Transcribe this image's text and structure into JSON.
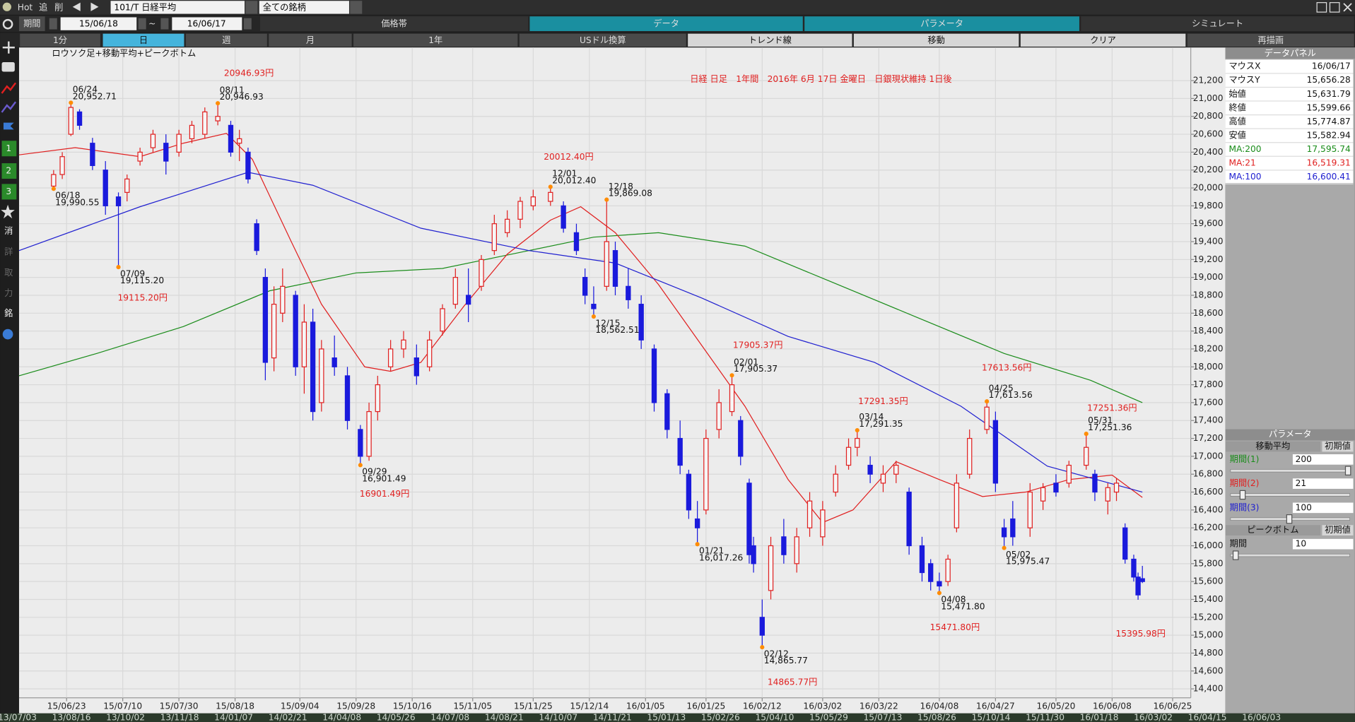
{
  "toolbar": {
    "hot": "Hot",
    "add": "追",
    "del": "削",
    "symbol": "101/T 日経平均",
    "universe": "全ての銘柄"
  },
  "period": {
    "label": "期間",
    "from": "15/06/18",
    "sep": "~",
    "to": "16/06/17"
  },
  "tabs": [
    "価格帯",
    "データ",
    "パラメータ",
    "シミュレート"
  ],
  "buttons": [
    "1分",
    "日",
    "週",
    "月",
    "1年",
    "USドル換算",
    "トレンド線",
    "移動",
    "クリア",
    "再描画"
  ],
  "sidebar": [
    "1",
    "2",
    "3",
    "消",
    "詳",
    "取",
    "力",
    "銘"
  ],
  "chart_data": {
    "type": "candlestick",
    "title": "日経 日足　1年間　2016年 6月 17日 金曜日　日銀現状維持 1日後",
    "subtitle": "ロウソク足+移動平均+ピークボトム",
    "up_color": "#e02020",
    "down_color": "#1a1adc",
    "grid": true,
    "ylim": [
      14300,
      21570
    ],
    "yticks": [
      {
        "value": 14400,
        "label": "14,400"
      },
      {
        "value": 14600,
        "label": "14,600"
      },
      {
        "value": 14800,
        "label": "14,800"
      },
      {
        "value": 15000,
        "label": "15,000"
      },
      {
        "value": 15200,
        "label": "15,200"
      },
      {
        "value": 15400,
        "label": "15,400"
      },
      {
        "value": 15600,
        "label": "15,600"
      },
      {
        "value": 15800,
        "label": "15,800"
      },
      {
        "value": 16000,
        "label": "16,000"
      },
      {
        "value": 16200,
        "label": "16,200"
      },
      {
        "value": 16400,
        "label": "16,400"
      },
      {
        "value": 16600,
        "label": "16,600"
      },
      {
        "value": 16800,
        "label": "16,800"
      },
      {
        "value": 17000,
        "label": "17,000"
      },
      {
        "value": 17200,
        "label": "17,200"
      },
      {
        "value": 17400,
        "label": "17,400"
      },
      {
        "value": 17600,
        "label": "17,600"
      },
      {
        "value": 17800,
        "label": "17,800"
      },
      {
        "value": 18000,
        "label": "18,000"
      },
      {
        "value": 18200,
        "label": "18,200"
      },
      {
        "value": 18400,
        "label": "18,400"
      },
      {
        "value": 18600,
        "label": "18,600"
      },
      {
        "value": 18800,
        "label": "18,800"
      },
      {
        "value": 19000,
        "label": "19,000"
      },
      {
        "value": 19200,
        "label": "19,200"
      },
      {
        "value": 19400,
        "label": "19,400"
      },
      {
        "value": 19600,
        "label": "19,600"
      },
      {
        "value": 19800,
        "label": "19,800"
      },
      {
        "value": 20000,
        "label": "20,000"
      },
      {
        "value": 20200,
        "label": "20,200"
      },
      {
        "value": 20400,
        "label": "20,400"
      },
      {
        "value": 20600,
        "label": "20,600"
      },
      {
        "value": 20800,
        "label": "20,800"
      },
      {
        "value": 21000,
        "label": "21,000"
      },
      {
        "value": 21200,
        "label": "21,200"
      }
    ],
    "xlim": [
      -8,
      263
    ],
    "xticks": [
      {
        "value": 3,
        "label": "15/06/23"
      },
      {
        "value": 16,
        "label": "15/07/10"
      },
      {
        "value": 29,
        "label": "15/07/30"
      },
      {
        "value": 42,
        "label": "15/08/18"
      },
      {
        "value": 57,
        "label": "15/09/04"
      },
      {
        "value": 70,
        "label": "15/09/28"
      },
      {
        "value": 83,
        "label": "15/10/16"
      },
      {
        "value": 97,
        "label": "15/11/05"
      },
      {
        "value": 111,
        "label": "15/11/25"
      },
      {
        "value": 124,
        "label": "15/12/14"
      },
      {
        "value": 137,
        "label": "16/01/05"
      },
      {
        "value": 151,
        "label": "16/01/25"
      },
      {
        "value": 164,
        "label": "16/02/12"
      },
      {
        "value": 178,
        "label": "16/03/02"
      },
      {
        "value": 191,
        "label": "16/03/22"
      },
      {
        "value": 205,
        "label": "16/04/08"
      },
      {
        "value": 218,
        "label": "16/04/27"
      },
      {
        "value": 232,
        "label": "16/05/20"
      },
      {
        "value": 245,
        "label": "16/06/08"
      },
      {
        "value": 259,
        "label": "16/06/25"
      }
    ],
    "candles": {
      "x": [
        0,
        2,
        4,
        6,
        9,
        12,
        15,
        17,
        20,
        23,
        26,
        29,
        32,
        35,
        38,
        41,
        43,
        45,
        47,
        49,
        51,
        53,
        56,
        58,
        60,
        62,
        65,
        68,
        71,
        73,
        75,
        78,
        81,
        84,
        87,
        90,
        93,
        96,
        99,
        102,
        105,
        108,
        111,
        115,
        118,
        121,
        123,
        125,
        128,
        130,
        133,
        136,
        139,
        142,
        145,
        147,
        149,
        151,
        154,
        157,
        159,
        161,
        162,
        164,
        166,
        169,
        172,
        175,
        178,
        181,
        184,
        186,
        189,
        192,
        195,
        198,
        201,
        203,
        205,
        207,
        209,
        212,
        216,
        218,
        220,
        222,
        226,
        229,
        232,
        235,
        239,
        241,
        244,
        246,
        248,
        250,
        251,
        252
      ],
      "open": [
        20020,
        20150,
        20600,
        20850,
        20500,
        20200,
        19900,
        19950,
        20300,
        20450,
        20500,
        20400,
        20550,
        20600,
        20750,
        20700,
        20500,
        20400,
        19600,
        19000,
        18100,
        18600,
        18800,
        18000,
        18500,
        17600,
        18100,
        17900,
        17300,
        17000,
        17500,
        18000,
        18200,
        18100,
        18000,
        18400,
        18700,
        18800,
        18900,
        19300,
        19500,
        19650,
        19800,
        19850,
        19800,
        19500,
        19000,
        18700,
        18900,
        19300,
        18900,
        18700,
        18200,
        17700,
        17200,
        16800,
        16300,
        16400,
        17300,
        17500,
        17400,
        16700,
        16000,
        15200,
        15500,
        16100,
        15800,
        16200,
        16100,
        16600,
        16900,
        17100,
        16900,
        16700,
        16800,
        16600,
        16000,
        15800,
        15600,
        15600,
        16200,
        16800,
        17300,
        17400,
        16200,
        16300,
        16200,
        16500,
        16700,
        16700,
        16900,
        16800,
        16500,
        16600,
        16200,
        15850,
        15650,
        15631.79
      ],
      "high": [
        20200,
        20400,
        20952.71,
        20880,
        20560,
        20300,
        19950,
        20150,
        20450,
        20650,
        20600,
        20650,
        20750,
        20900,
        20946.93,
        20750,
        20650,
        20450,
        19650,
        19100,
        18900,
        19100,
        18850,
        18700,
        18650,
        18300,
        18350,
        18000,
        17350,
        17600,
        17900,
        18300,
        18400,
        18250,
        18400,
        18700,
        19100,
        19100,
        19250,
        19700,
        19750,
        19900,
        19980,
        20012.4,
        19850,
        19600,
        19100,
        18900,
        19869.08,
        19400,
        19100,
        18800,
        18250,
        17750,
        17400,
        16850,
        16500,
        17300,
        17750,
        17905.37,
        17450,
        16750,
        16100,
        15400,
        16100,
        16300,
        16200,
        16600,
        16500,
        16900,
        17200,
        17291.35,
        17000,
        16900,
        16950,
        16650,
        16100,
        15850,
        15700,
        15900,
        16800,
        17300,
        17613.56,
        17500,
        16300,
        16500,
        16700,
        16700,
        16800,
        16950,
        17251.36,
        16850,
        16700,
        16750,
        16250,
        15900,
        15700,
        15774.87
      ],
      "low": [
        19990.55,
        20100,
        20580,
        20650,
        20200,
        19700,
        19115.2,
        19850,
        20250,
        20400,
        20150,
        20350,
        20500,
        20550,
        20700,
        20350,
        20300,
        20050,
        19250,
        17850,
        17950,
        18500,
        17900,
        17700,
        17400,
        17500,
        17900,
        17300,
        16901.49,
        16950,
        17400,
        17950,
        18100,
        17800,
        17950,
        18350,
        18650,
        18500,
        18850,
        19250,
        19450,
        19550,
        19750,
        19800,
        19500,
        19250,
        18700,
        18562.51,
        18850,
        18800,
        18650,
        18200,
        17500,
        17200,
        16800,
        16300,
        16017.26,
        16350,
        17200,
        17450,
        16900,
        15800,
        15700,
        14865.77,
        15400,
        15800,
        15700,
        16100,
        16000,
        16550,
        16850,
        17000,
        16700,
        16600,
        16700,
        15900,
        15600,
        15500,
        15471.8,
        15550,
        16150,
        16750,
        17250,
        16600,
        15975.47,
        16000,
        16100,
        16400,
        16550,
        16650,
        16850,
        16500,
        16350,
        16500,
        15800,
        15600,
        15395.98,
        15582.94
      ],
      "close": [
        20150,
        20350,
        20900,
        20700,
        20250,
        19800,
        19800,
        20100,
        20400,
        20600,
        20300,
        20600,
        20700,
        20850,
        20800,
        20400,
        20550,
        20100,
        19300,
        18050,
        18700,
        18900,
        18000,
        18500,
        17500,
        18200,
        18000,
        17400,
        17000,
        17500,
        17800,
        18200,
        18300,
        17900,
        18300,
        18650,
        19000,
        18700,
        19200,
        19600,
        19650,
        19850,
        19900,
        19950,
        19550,
        19300,
        18800,
        18650,
        19400,
        18900,
        18750,
        18300,
        17600,
        17300,
        16900,
        16400,
        16200,
        17200,
        17600,
        17800,
        17000,
        15900,
        15800,
        15000,
        16000,
        15900,
        16100,
        16500,
        16400,
        16800,
        17100,
        17200,
        16800,
        16800,
        16900,
        16000,
        15700,
        15600,
        15550,
        15850,
        16700,
        17200,
        17550,
        16700,
        16100,
        16100,
        16600,
        16650,
        16600,
        16900,
        17100,
        16600,
        16650,
        16700,
        15850,
        15650,
        15450,
        15599.66
      ]
    },
    "series": [
      {
        "color": "#1a8c1a",
        "x": [
          -8,
          10,
          30,
          50,
          70,
          90,
          110,
          125,
          140,
          160,
          180,
          200,
          220,
          240,
          252
        ],
        "values": [
          17900,
          18150,
          18450,
          18850,
          19050,
          19100,
          19300,
          19450,
          19500,
          19350,
          18950,
          18550,
          18150,
          17850,
          17600
        ]
      },
      {
        "color": "#e02020",
        "x": [
          -8,
          5,
          20,
          30,
          40,
          46,
          55,
          62,
          72,
          78,
          85,
          95,
          105,
          115,
          122,
          130,
          140,
          150,
          160,
          170,
          178,
          185,
          195,
          205,
          215,
          225,
          235,
          245,
          252
        ],
        "values": [
          20370,
          20450,
          20350,
          20500,
          20610,
          20320,
          19400,
          18700,
          18000,
          17950,
          18050,
          18680,
          19260,
          19640,
          19790,
          19500,
          18920,
          18240,
          17560,
          16740,
          16260,
          16400,
          16940,
          16740,
          16550,
          16600,
          16740,
          16790,
          16540
        ]
      },
      {
        "color": "#2020d0",
        "x": [
          -8,
          20,
          45,
          60,
          85,
          110,
          130,
          150,
          170,
          190,
          210,
          230,
          252
        ],
        "values": [
          19300,
          19790,
          20175,
          20030,
          19550,
          19300,
          19160,
          18770,
          18340,
          18050,
          17560,
          16890,
          16600
        ]
      }
    ],
    "marker_color": "#ff8c00",
    "label_color": "#e02020",
    "peaks": [
      {
        "x": 0,
        "date": "06/18",
        "value": 19990.55,
        "value_label": "19,990.55",
        "kind": "low"
      },
      {
        "x": 4,
        "date": "06/24",
        "value": 20952.71,
        "value_label": "20,952.71",
        "kind": "high"
      },
      {
        "x": 15,
        "date": "07/09",
        "value": 19115.2,
        "value_label": "19,115.20",
        "kind": "low",
        "label": "19115.20円"
      },
      {
        "x": 38,
        "date": "08/11",
        "value": 20946.93,
        "value_label": "20,946.93",
        "kind": "high",
        "label": "20946.93円"
      },
      {
        "x": 71,
        "date": "09/29",
        "value": 16901.49,
        "value_label": "16,901.49",
        "kind": "low",
        "label": "16901.49円"
      },
      {
        "x": 115,
        "date": "12/01",
        "value": 20012.4,
        "value_label": "20,012.40",
        "kind": "high",
        "label": "20012.40円"
      },
      {
        "x": 125,
        "date": "12/15",
        "value": 18562.51,
        "value_label": "18,562.51",
        "kind": "low"
      },
      {
        "x": 128,
        "date": "12/18",
        "value": 19869.08,
        "value_label": "19,869.08",
        "kind": "high"
      },
      {
        "x": 149,
        "date": "01/21",
        "value": 16017.26,
        "value_label": "16,017.26",
        "kind": "low"
      },
      {
        "x": 157,
        "date": "02/01",
        "value": 17905.37,
        "value_label": "17,905.37",
        "kind": "high",
        "label": "17905.37円"
      },
      {
        "x": 164,
        "date": "02/12",
        "value": 14865.77,
        "value_label": "14,865.77",
        "kind": "low",
        "label": "14865.77円"
      },
      {
        "x": 186,
        "date": "03/14",
        "value": 17291.35,
        "value_label": "17,291.35",
        "kind": "high",
        "label": "17291.35円"
      },
      {
        "x": 205,
        "date": "04/08",
        "value": 15471.8,
        "value_label": "15,471.80",
        "kind": "low",
        "label": "15471.80円"
      },
      {
        "x": 216,
        "date": "04/25",
        "value": 17613.56,
        "value_label": "17,613.56",
        "kind": "high",
        "label": "17613.56円"
      },
      {
        "x": 220,
        "date": "05/02",
        "value": 15975.47,
        "value_label": "15,975.47",
        "kind": "low"
      },
      {
        "x": 239,
        "date": "05/31",
        "value": 17251.36,
        "value_label": "17,251.36",
        "kind": "high",
        "label": "17251.36円"
      },
      {
        "x": 251,
        "value": 15395.98,
        "kind": "low",
        "label": "15395.98円"
      }
    ]
  },
  "data_panel": {
    "title": "データパネル",
    "rows": [
      {
        "name": "マウスX",
        "value": "16/06/17"
      },
      {
        "name": "マウスY",
        "value": "15,656.28"
      },
      {
        "name": "始値",
        "value": "15,631.79"
      },
      {
        "name": "終値",
        "value": "15,599.66"
      },
      {
        "name": "高値",
        "value": "15,774.87"
      },
      {
        "name": "安値",
        "value": "15,582.94"
      },
      {
        "name": "MA:200",
        "value": "17,595.74",
        "color": "#1a8c1a"
      },
      {
        "name": "MA:21",
        "value": "16,519.31",
        "color": "#e02020"
      },
      {
        "name": "MA:100",
        "value": "16,600.41",
        "color": "#2020d0"
      }
    ]
  },
  "param_panel": {
    "title": "パラメータ",
    "ma_title": "移動平均",
    "reset": "初期値",
    "ma_periods": [
      {
        "label": "期間(1)",
        "value": 200,
        "color": "#1a8c1a"
      },
      {
        "label": "期間(2)",
        "value": 21,
        "color": "#e02020"
      },
      {
        "label": "期間(3)",
        "value": 100,
        "color": "#2020d0"
      }
    ],
    "peak_title": "ピークボトム",
    "peak_period": {
      "label": "期間",
      "value": 10
    }
  },
  "overview_dates": [
    "13/07/03",
    "13/08/16",
    "13/10/02",
    "13/11/18",
    "14/01/07",
    "14/02/21",
    "14/04/08",
    "14/05/26",
    "14/07/08",
    "14/08/21",
    "14/10/07",
    "14/11/21",
    "15/01/13",
    "15/02/26",
    "15/04/10",
    "15/05/29",
    "15/07/13",
    "15/08/26",
    "15/10/14",
    "15/11/30",
    "16/01/18",
    "16/03/02",
    "16/04/15",
    "16/06/03"
  ]
}
